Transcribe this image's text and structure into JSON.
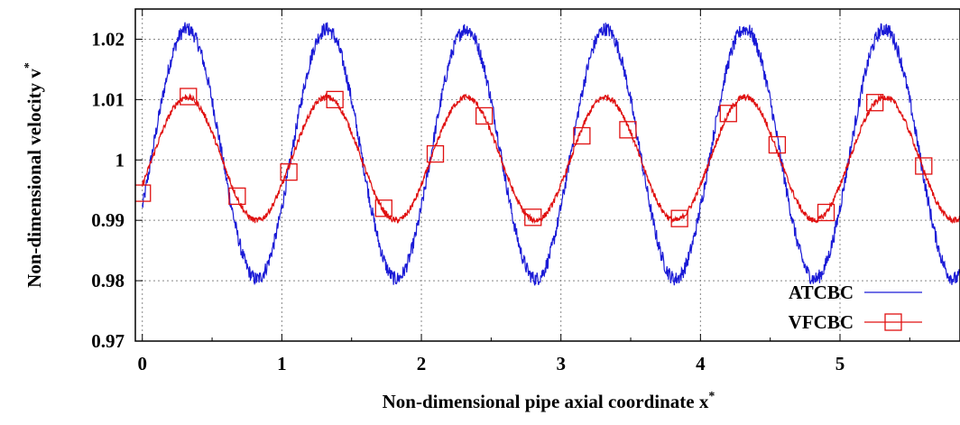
{
  "chart_data": {
    "type": "line",
    "title": "",
    "xlabel": "Non-dimensional pipe axial coordinate x",
    "xlabel_sup": "*",
    "ylabel": "Non-dimensional velocity v",
    "ylabel_sup": "*",
    "xlim": [
      -0.05,
      5.86
    ],
    "ylim": [
      0.97,
      1.025
    ],
    "x_ticks": [
      0,
      1,
      2,
      3,
      4,
      5
    ],
    "x_tick_labels": [
      "0",
      "1",
      "2",
      "3",
      "4",
      "5"
    ],
    "y_ticks": [
      0.97,
      0.98,
      0.99,
      1.0,
      1.01,
      1.02
    ],
    "y_tick_labels": [
      "0.97",
      "0.98",
      "0.99",
      "1",
      "1.01",
      "1.02"
    ],
    "grid": true,
    "legend_position": "bottom-right",
    "series": [
      {
        "name": "ATCBC",
        "color": "#1a1ad6",
        "marker": "none",
        "period": 1.0,
        "mean": 1.001,
        "amplitude": 0.0207,
        "peak_x": 0.32,
        "noise": 0.0012,
        "x_range": [
          0,
          5.86
        ]
      },
      {
        "name": "VFCBC",
        "color": "#e01010",
        "marker": "open-square",
        "period": 1.0,
        "mean": 1.0002,
        "amplitude": 0.0102,
        "peak_x": 0.32,
        "noise": 0.0005,
        "x_range": [
          0,
          5.86
        ],
        "markers": [
          {
            "x": 0.0,
            "y": 0.9945
          },
          {
            "x": 0.33,
            "y": 1.0105
          },
          {
            "x": 0.68,
            "y": 0.994
          },
          {
            "x": 1.05,
            "y": 0.998
          },
          {
            "x": 1.38,
            "y": 1.01
          },
          {
            "x": 1.73,
            "y": 0.992
          },
          {
            "x": 2.1,
            "y": 1.001
          },
          {
            "x": 2.45,
            "y": 1.0073
          },
          {
            "x": 2.8,
            "y": 0.9905
          },
          {
            "x": 3.15,
            "y": 1.004
          },
          {
            "x": 3.48,
            "y": 1.005
          },
          {
            "x": 3.85,
            "y": 0.9903
          },
          {
            "x": 4.2,
            "y": 1.0077
          },
          {
            "x": 4.55,
            "y": 1.0025
          },
          {
            "x": 4.9,
            "y": 0.9913
          },
          {
            "x": 5.25,
            "y": 1.0095
          },
          {
            "x": 5.6,
            "y": 0.999
          }
        ]
      }
    ]
  }
}
